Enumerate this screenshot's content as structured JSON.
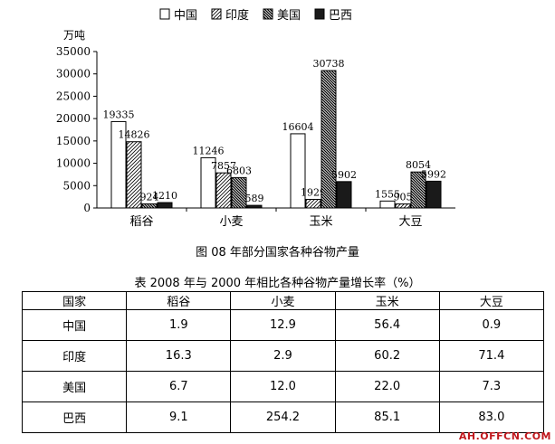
{
  "chart_data": {
    "type": "bar",
    "title": "",
    "ylabel": "万吨",
    "xlabel": "",
    "categories": [
      "稻谷",
      "小麦",
      "玉米",
      "大豆"
    ],
    "series": [
      {
        "name": "中国",
        "values": [
          19335,
          11246,
          16604,
          1555
        ],
        "color": "#ffffff",
        "pattern": "none"
      },
      {
        "name": "印度",
        "values": [
          14826,
          7857,
          1929,
          905
        ],
        "color": "#ffffff",
        "pattern": "hatch-light"
      },
      {
        "name": "美国",
        "values": [
          924,
          6803,
          30738,
          8054
        ],
        "color": "#444444",
        "pattern": "hatch-dense"
      },
      {
        "name": "巴西",
        "values": [
          1210,
          589,
          5902,
          5992
        ],
        "color": "#1a1a1a",
        "pattern": "solid"
      }
    ],
    "ylim": [
      0,
      35000
    ],
    "yticks": [
      0,
      5000,
      10000,
      15000,
      20000,
      25000,
      30000,
      35000
    ],
    "legend": "top",
    "grid": false
  },
  "captions": {
    "chart": "图  08 年部分国家各种谷物产量",
    "table": "表 2008 年与 2000 年相比各种谷物产量增长率（%）"
  },
  "table": {
    "headers": [
      "国家",
      "稻谷",
      "小麦",
      "玉米",
      "大豆"
    ],
    "rows": [
      [
        "中国",
        "1.9",
        "12.9",
        "56.4",
        "0.9"
      ],
      [
        "印度",
        "16.3",
        "2.9",
        "60.2",
        "71.4"
      ],
      [
        "美国",
        "6.7",
        "12.0",
        "22.0",
        "7.3"
      ],
      [
        "巴西",
        "9.1",
        "254.2",
        "85.1",
        "83.0"
      ]
    ]
  },
  "watermark": "AH.OFFCN.COM"
}
